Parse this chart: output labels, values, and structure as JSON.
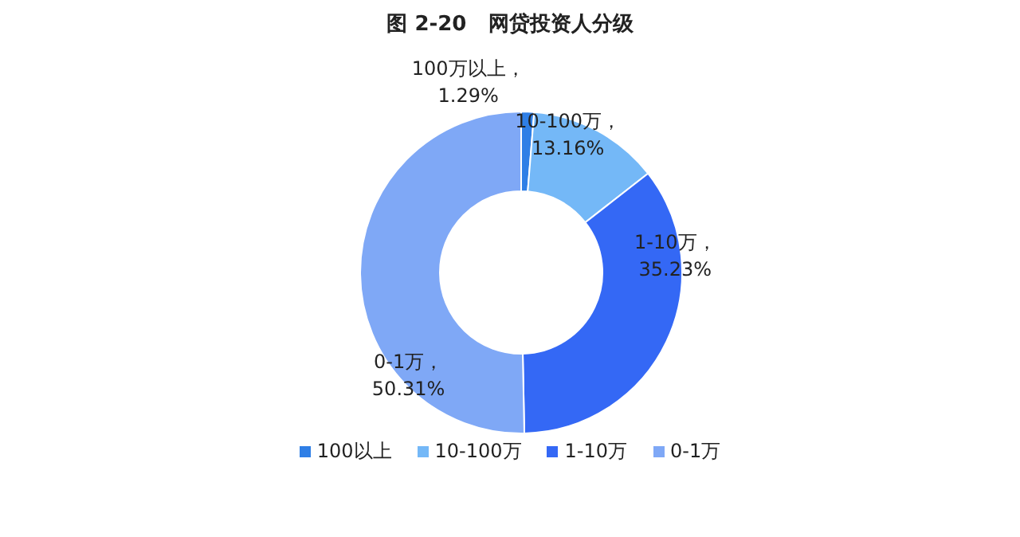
{
  "chart_data": {
    "type": "donut",
    "title": "图 2-20   网贷投资人分级",
    "categories": [
      "100以上",
      "10-100万",
      "1-10万",
      "0-1万"
    ],
    "values": [
      1.29,
      13.16,
      35.23,
      50.31
    ],
    "colors": [
      "#2f7fe6",
      "#74b8f7",
      "#3468f5",
      "#7fa8f6"
    ],
    "value_labels": [
      "100万以上，1.29%",
      "10-100万，13.16%",
      "1-10万，35.23%",
      "0-1万，50.31%"
    ],
    "legend": "bottom"
  }
}
